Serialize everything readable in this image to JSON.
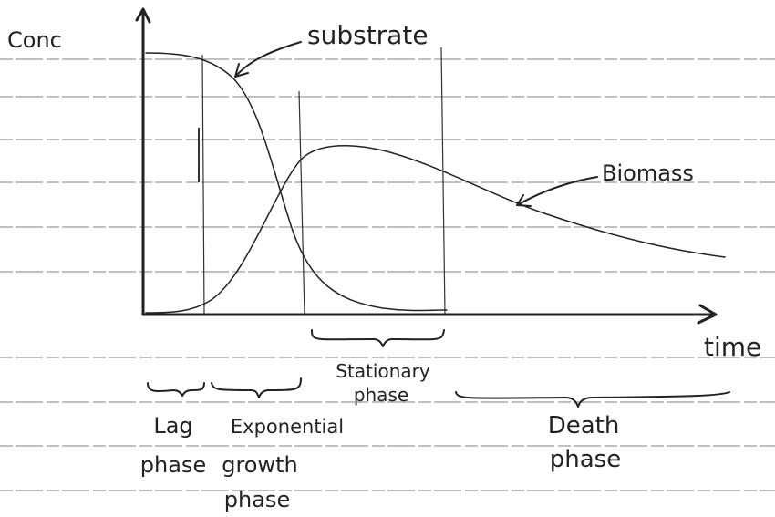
{
  "axis_labels": {
    "y": "Conc",
    "x": "time"
  },
  "curves": {
    "substrate": "substrate",
    "biomass": "Biomass"
  },
  "phases": [
    {
      "lines": [
        "Lag",
        "phase"
      ]
    },
    {
      "lines": [
        "Exponential",
        "growth",
        "phase"
      ]
    },
    {
      "lines": [
        "Stationary",
        "phase"
      ]
    },
    {
      "lines": [
        "Death",
        "phase"
      ]
    }
  ]
}
